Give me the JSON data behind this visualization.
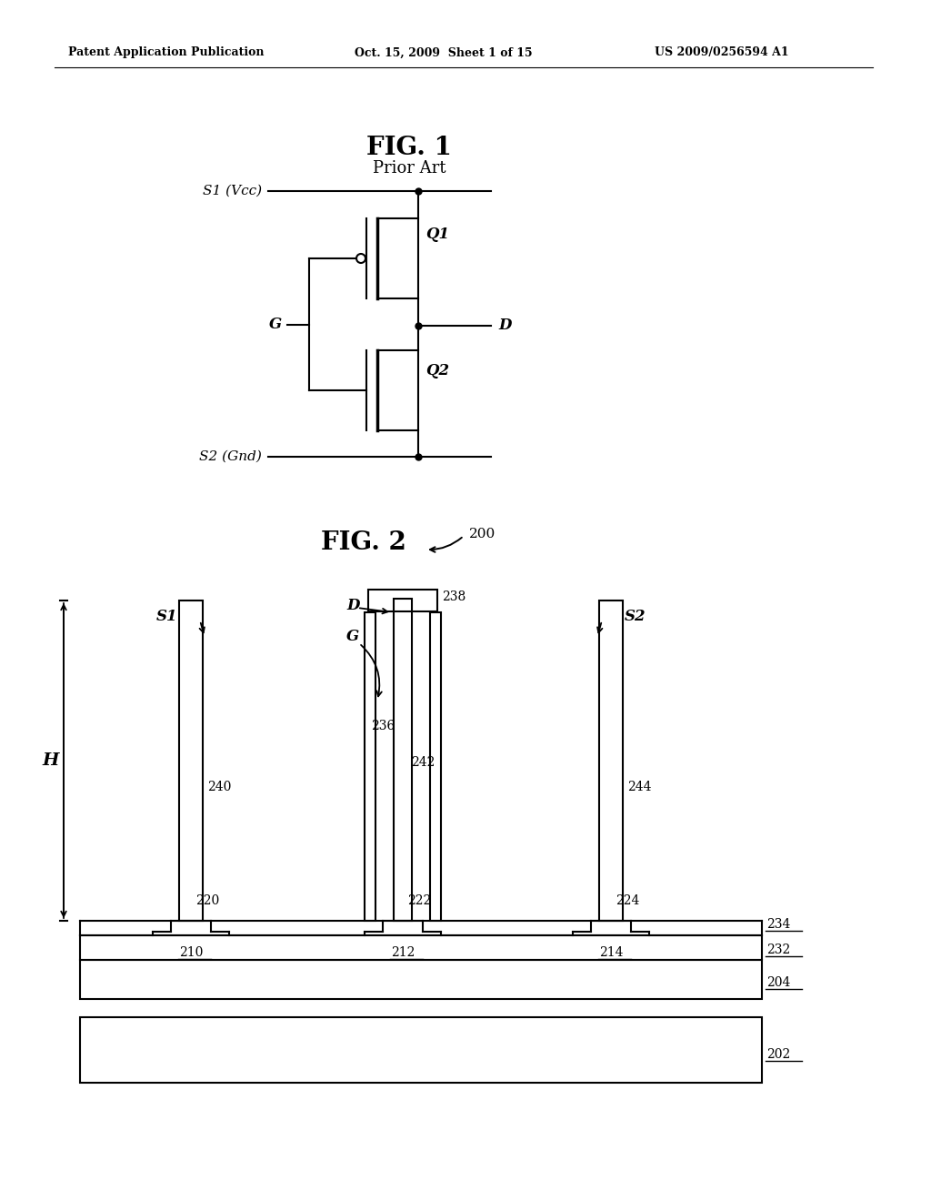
{
  "fig_width": 10.24,
  "fig_height": 13.2,
  "bg_color": "#ffffff",
  "header_left": "Patent Application Publication",
  "header_mid": "Oct. 15, 2009  Sheet 1 of 15",
  "header_right": "US 2009/0256594 A1",
  "fig1_title": "FIG. 1",
  "fig1_subtitle": "Prior Art",
  "fig2_title": "FIG. 2",
  "fig2_label": "200",
  "lw": 1.5,
  "lw_thick": 2.5
}
